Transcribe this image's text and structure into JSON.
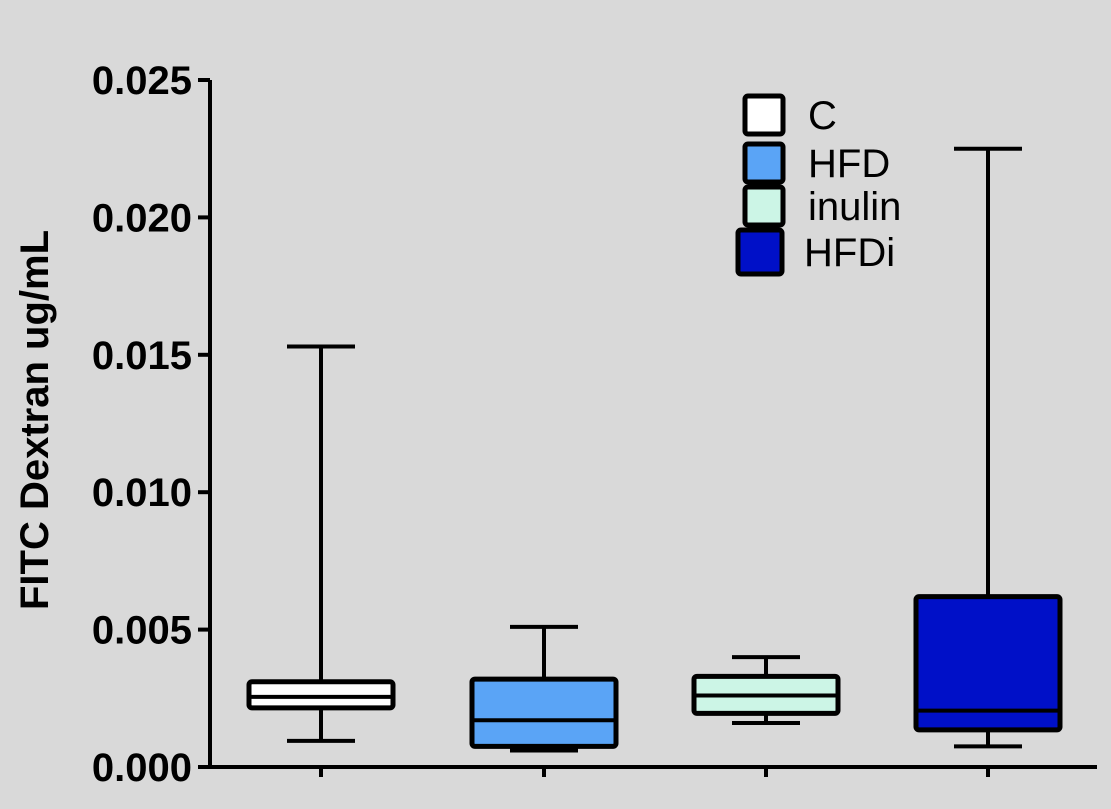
{
  "chart_data": {
    "type": "box",
    "ylabel": "FITC Dextran ug/mL",
    "ylim": [
      0,
      0.025
    ],
    "y_ticks": [
      "0.000",
      "0.005",
      "0.010",
      "0.015",
      "0.020",
      "0.025"
    ],
    "y_tick_values": [
      0,
      0.005,
      0.01,
      0.015,
      0.02,
      0.025
    ],
    "grid": false,
    "legend_position": "top-right",
    "series": [
      {
        "name": "C",
        "color": "#ffffff",
        "min": 0.00095,
        "q1": 0.00215,
        "median": 0.00255,
        "q3": 0.0031,
        "max": 0.0153
      },
      {
        "name": "HFD",
        "color": "#5aa4f6",
        "min": 0.0006,
        "q1": 0.00075,
        "median": 0.0017,
        "q3": 0.0032,
        "max": 0.0051
      },
      {
        "name": "inulin",
        "color": "#ccf5e6",
        "min": 0.0016,
        "q1": 0.00195,
        "median": 0.0026,
        "q3": 0.0033,
        "max": 0.004
      },
      {
        "name": "HFDi",
        "color": "#0010c8",
        "min": 0.00075,
        "q1": 0.00135,
        "median": 0.00205,
        "q3": 0.0062,
        "max": 0.0225
      }
    ]
  }
}
